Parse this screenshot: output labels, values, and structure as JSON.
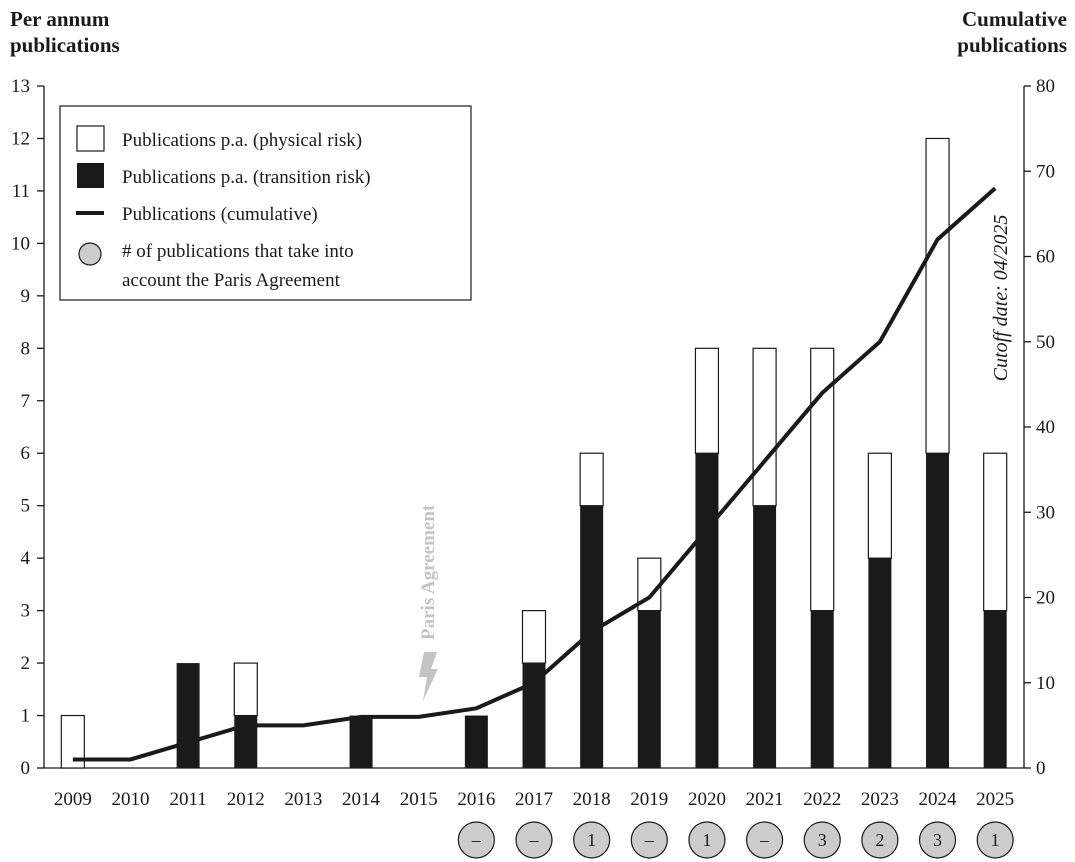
{
  "chart_data": {
    "type": "bar",
    "stacked": true,
    "categories": [
      "2009",
      "2010",
      "2011",
      "2012",
      "2013",
      "2014",
      "2015",
      "2016",
      "2017",
      "2018",
      "2019",
      "2020",
      "2021",
      "2022",
      "2023",
      "2024",
      "2025"
    ],
    "series": [
      {
        "name": "Publications p.a. (physical risk)",
        "color": "#ffffff",
        "values": [
          1,
          0,
          0,
          1,
          0,
          0,
          0,
          0,
          1,
          1,
          1,
          2,
          3,
          5,
          2,
          6,
          3
        ]
      },
      {
        "name": "Publications p.a. (transition risk)",
        "color": "#1a1a1a",
        "values": [
          0,
          0,
          2,
          1,
          0,
          1,
          0,
          1,
          2,
          5,
          3,
          6,
          5,
          3,
          4,
          6,
          3
        ]
      }
    ],
    "line_series": {
      "name": "Publications (cumulative)",
      "axis": "right",
      "values": [
        1,
        1,
        3,
        5,
        5,
        6,
        6,
        7,
        10,
        16,
        20,
        28,
        36,
        44,
        50,
        62,
        68
      ]
    },
    "circle_series": {
      "name": "# of publications that take into account the Paris Agreement",
      "labels": [
        "",
        "",
        "",
        "",
        "",
        "",
        "",
        "–",
        "–",
        "1",
        "–",
        "1",
        "–",
        "3",
        "2",
        "3",
        "1"
      ]
    },
    "ylabel_left": [
      "Per annum",
      "publications"
    ],
    "ylabel_right": [
      "Cumulative",
      "publications"
    ],
    "ylim_left": [
      0,
      13
    ],
    "yticks_left": [
      0,
      1,
      2,
      3,
      4,
      5,
      6,
      7,
      8,
      9,
      10,
      11,
      12,
      13
    ],
    "ylim_right": [
      0,
      80
    ],
    "yticks_right": [
      0,
      10,
      20,
      30,
      40,
      50,
      60,
      70,
      80
    ],
    "legend_position": "top-left",
    "legend_entries": [
      "Publications p.a. (physical risk)",
      "Publications p.a. (transition risk)",
      "Publications (cumulative)",
      "# of publications that take into",
      "account the Paris Agreement"
    ],
    "annotations": {
      "paris": {
        "text": "Paris Agreement",
        "x": "2015"
      },
      "cutoff": {
        "text": "Cutoff date: 04/2025"
      }
    },
    "grid": false
  }
}
